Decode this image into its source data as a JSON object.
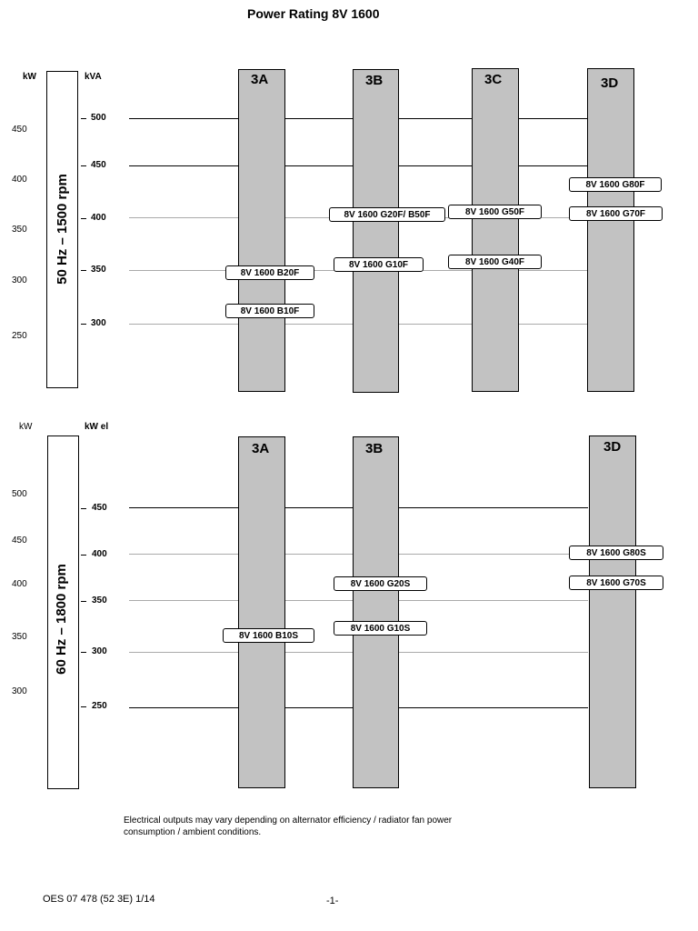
{
  "title": "Power Rating 8V 1600",
  "panels": [
    {
      "id": "50hz",
      "rpm_label": "50 Hz – 1500 rpm",
      "left_unit": "kW",
      "right_unit": "kVA",
      "kw_ticks": [
        "450",
        "400",
        "350",
        "300",
        "250"
      ],
      "kva_ticks": [
        "500",
        "450",
        "400",
        "350",
        "300"
      ],
      "columns": [
        "3A",
        "3B",
        "3C",
        "3D"
      ],
      "engines": [
        {
          "label": "8V 1600 B20F",
          "column": "3A"
        },
        {
          "label": "8V 1600 B10F",
          "column": "3A"
        },
        {
          "label": "8V 1600 G20F/ B50F",
          "column": "3B"
        },
        {
          "label": "8V 1600 G10F",
          "column": "3B"
        },
        {
          "label": "8V 1600 G50F",
          "column": "3C"
        },
        {
          "label": "8V 1600 G40F",
          "column": "3C"
        },
        {
          "label": "8V 1600 G80F",
          "column": "3D"
        },
        {
          "label": "8V 1600 G70F",
          "column": "3D"
        }
      ]
    },
    {
      "id": "60hz",
      "rpm_label": "60 Hz – 1800 rpm",
      "left_unit": "kW",
      "right_unit": "kW el",
      "kw_ticks": [
        "500",
        "450",
        "400",
        "350",
        "300"
      ],
      "kwel_ticks": [
        "450",
        "400",
        "350",
        "300",
        "250"
      ],
      "columns": [
        "3A",
        "3B",
        "3D"
      ],
      "engines": [
        {
          "label": "8V 1600 G20S",
          "column": "3B"
        },
        {
          "label": "8V 1600 G10S",
          "column": "3B"
        },
        {
          "label": "8V 1600 B10S",
          "column": "3A"
        },
        {
          "label": "8V 1600 G80S",
          "column": "3D"
        },
        {
          "label": "8V 1600 G70S",
          "column": "3D"
        }
      ]
    }
  ],
  "footnote": "Electrical outputs may vary depending on alternator efficiency / radiator fan power consumption / ambient conditions.",
  "footer": {
    "doc_id": "OES 07 478 (52 3E) 1/14",
    "page_number": "-1-"
  }
}
